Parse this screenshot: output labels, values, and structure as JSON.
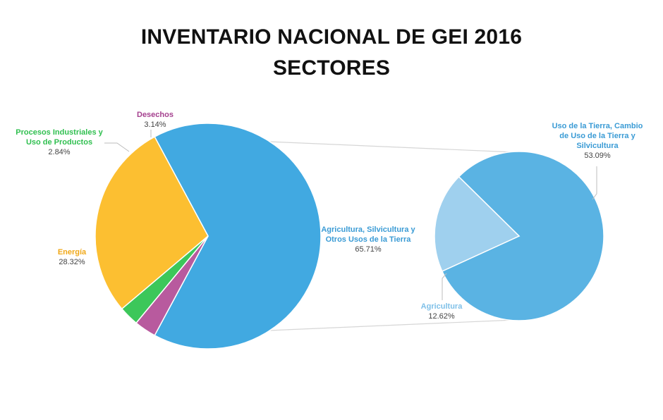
{
  "title": {
    "line1": "INVENTARIO NACIONAL DE GEI 2016",
    "line2": "SECTORES"
  },
  "chart_data": {
    "type": "pie",
    "subtype": "pie-of-pie",
    "main_pie": {
      "slices": [
        {
          "name": "Agricultura, Silvicultura y Otros Usos de la Tierra",
          "value": 65.71,
          "label": "65.71%",
          "color": "#41a9e1"
        },
        {
          "name": "Energía",
          "value": 28.32,
          "label": "28.32%",
          "color": "#fcbf31"
        },
        {
          "name": "Procesos Industriales y Uso de Productos",
          "value": 2.84,
          "label": "2.84%",
          "color": "#3cc75a"
        },
        {
          "name": "Desechos",
          "value": 3.14,
          "label": "3.14%",
          "color": "#b85a9e"
        }
      ]
    },
    "secondary_pie": {
      "source": "Agricultura, Silvicultura y Otros Usos de la Tierra",
      "slices": [
        {
          "name": "Uso de la Tierra, Cambio de Uso de la Tierra y Silvicultura",
          "value": 53.09,
          "label": "53.09%",
          "color": "#5ab3e3"
        },
        {
          "name": "Agricultura",
          "value": 12.62,
          "label": "12.62%",
          "color": "#9fd0ee"
        }
      ]
    }
  },
  "labels": {
    "afolu": {
      "lines": [
        "Agricultura, Silvicultura y",
        "Otros Usos de la Tierra"
      ],
      "pct": "65.71%",
      "color": "#3a9bd5"
    },
    "energia": {
      "lines": [
        "Energía"
      ],
      "pct": "28.32%",
      "color": "#f0a818"
    },
    "ippu": {
      "lines": [
        "Procesos Industriales y",
        "Uso de Productos"
      ],
      "pct": "2.84%",
      "color": "#2fbf4f"
    },
    "desechos": {
      "lines": [
        "Desechos"
      ],
      "pct": "3.14%",
      "color": "#a5418f"
    },
    "uso_tierra": {
      "lines": [
        "Uso de la Tierra, Cambio",
        "de Uso de la Tierra y",
        "Silvicultura"
      ],
      "pct": "53.09%",
      "color": "#3a9bd5"
    },
    "agricultura": {
      "lines": [
        "Agricultura"
      ],
      "pct": "12.62%",
      "color": "#7fc0e8"
    }
  }
}
